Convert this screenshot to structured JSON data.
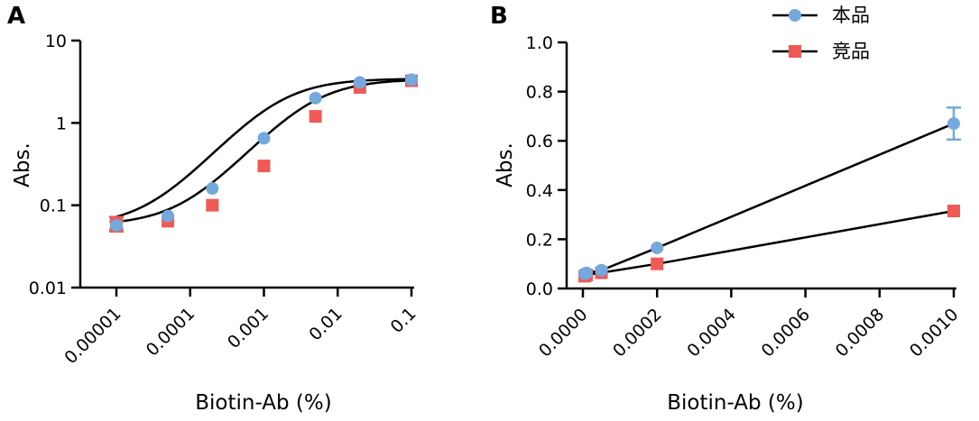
{
  "colors": {
    "series_blue": "#73A9DC",
    "series_red": "#EF5A55",
    "axis": "#000000",
    "curve": "#000000"
  },
  "legend": [
    {
      "name": "本品",
      "marker": "circle",
      "color": "#73A9DC"
    },
    {
      "name": "竞品",
      "marker": "square",
      "color": "#EF5A55"
    }
  ],
  "chart_data": [
    {
      "panel": "A",
      "type": "scatter",
      "xscale": "log",
      "yscale": "log",
      "xlabel": "Biotin-Ab (%)",
      "ylabel": "Abs.",
      "xlim": [
        1e-05,
        0.1
      ],
      "ylim": [
        0.01,
        10
      ],
      "x_ticks": [
        1e-05,
        0.0001,
        0.001,
        0.01,
        0.1
      ],
      "x_tick_labels": [
        "0.00001",
        "0.0001",
        "0.001",
        "0.01",
        "0.1"
      ],
      "y_ticks": [
        0.01,
        0.1,
        1,
        10
      ],
      "y_tick_labels": [
        "0.01",
        "0.1",
        "1",
        "10"
      ],
      "fit": "4PL sigmoid",
      "series": [
        {
          "name": "本品",
          "marker": "circle",
          "x": [
            1e-05,
            5e-05,
            0.0002,
            0.001,
            0.005,
            0.02,
            0.1
          ],
          "y": [
            0.057,
            0.074,
            0.16,
            0.65,
            2.0,
            3.1,
            3.35
          ],
          "err": [
            0.006,
            0,
            0,
            0,
            0,
            0,
            0
          ],
          "fit_params": {
            "bottom": 0.055,
            "top": 3.45,
            "ec50": 0.0015,
            "hill": 1.05
          }
        },
        {
          "name": "竞品",
          "marker": "square",
          "x": [
            1e-05,
            5e-05,
            0.0002,
            0.001,
            0.005,
            0.02,
            0.1
          ],
          "y": [
            0.06,
            0.064,
            0.1,
            0.3,
            1.2,
            2.7,
            3.25
          ],
          "err": [
            0.012,
            0,
            0,
            0,
            0,
            0,
            0
          ],
          "fit_params": {
            "bottom": 0.057,
            "top": 3.4,
            "ec50": 0.0042,
            "hill": 1.05
          }
        }
      ]
    },
    {
      "panel": "B",
      "type": "line",
      "xlabel": "Biotin-Ab (%)",
      "ylabel": "Abs.",
      "xlim": [
        0,
        0.001
      ],
      "ylim": [
        0,
        1.0
      ],
      "x_ticks": [
        0,
        0.0002,
        0.0004,
        0.0006,
        0.0008,
        0.001
      ],
      "x_tick_labels": [
        "0.0000",
        "0.0002",
        "0.0004",
        "0.0006",
        "0.0008",
        "0.0010"
      ],
      "y_ticks": [
        0,
        0.2,
        0.4,
        0.6,
        0.8,
        1.0
      ],
      "y_tick_labels": [
        "0.0",
        "0.2",
        "0.4",
        "0.6",
        "0.8",
        "1.0"
      ],
      "series": [
        {
          "name": "本品",
          "marker": "circle",
          "x": [
            5e-06,
            1e-05,
            5e-05,
            0.0002,
            0.001
          ],
          "y": [
            0.06,
            0.063,
            0.074,
            0.165,
            0.67
          ],
          "err": [
            0,
            0,
            0,
            0,
            0.065
          ]
        },
        {
          "name": "竞品",
          "marker": "square",
          "x": [
            5e-06,
            1e-05,
            5e-05,
            0.0002,
            0.001
          ],
          "y": [
            0.05,
            0.055,
            0.064,
            0.1,
            0.315
          ],
          "err": [
            0,
            0,
            0,
            0,
            0
          ]
        }
      ]
    }
  ]
}
